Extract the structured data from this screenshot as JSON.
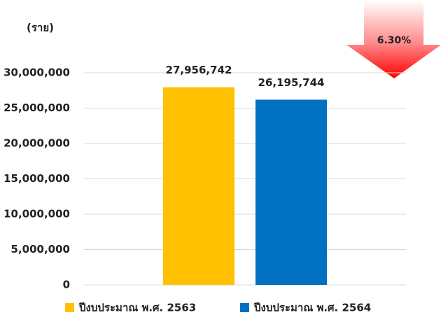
{
  "chart_data": {
    "type": "bar",
    "y_label": "(ราย)",
    "annotation": "6.30%",
    "categories": [
      null
    ],
    "series": [
      {
        "name": "ปีงบประมาณ พ.ศ. 2563",
        "color": "#ffc000",
        "values": [
          27956742
        ],
        "value_labels": [
          "27,956,742"
        ]
      },
      {
        "name": "ปีงบประมาณ พ.ศ. 2564",
        "color": "#0070c0",
        "values": [
          26195744
        ],
        "value_labels": [
          "26,195,744"
        ]
      }
    ],
    "ylim": [
      0,
      30000000
    ],
    "yticks": [
      0,
      {
        "value": 5000000,
        "label": "5,000,000"
      },
      {
        "value": 10000000,
        "label": "10,000,000"
      },
      {
        "value": 15000000,
        "label": "15,000,000"
      },
      {
        "value": 20000000,
        "label": "20,000,000"
      },
      {
        "value": 25000000,
        "label": "25,000,000"
      },
      {
        "value": 30000000,
        "label": "30,000,000"
      }
    ],
    "grid": true,
    "legend": "bottom"
  }
}
